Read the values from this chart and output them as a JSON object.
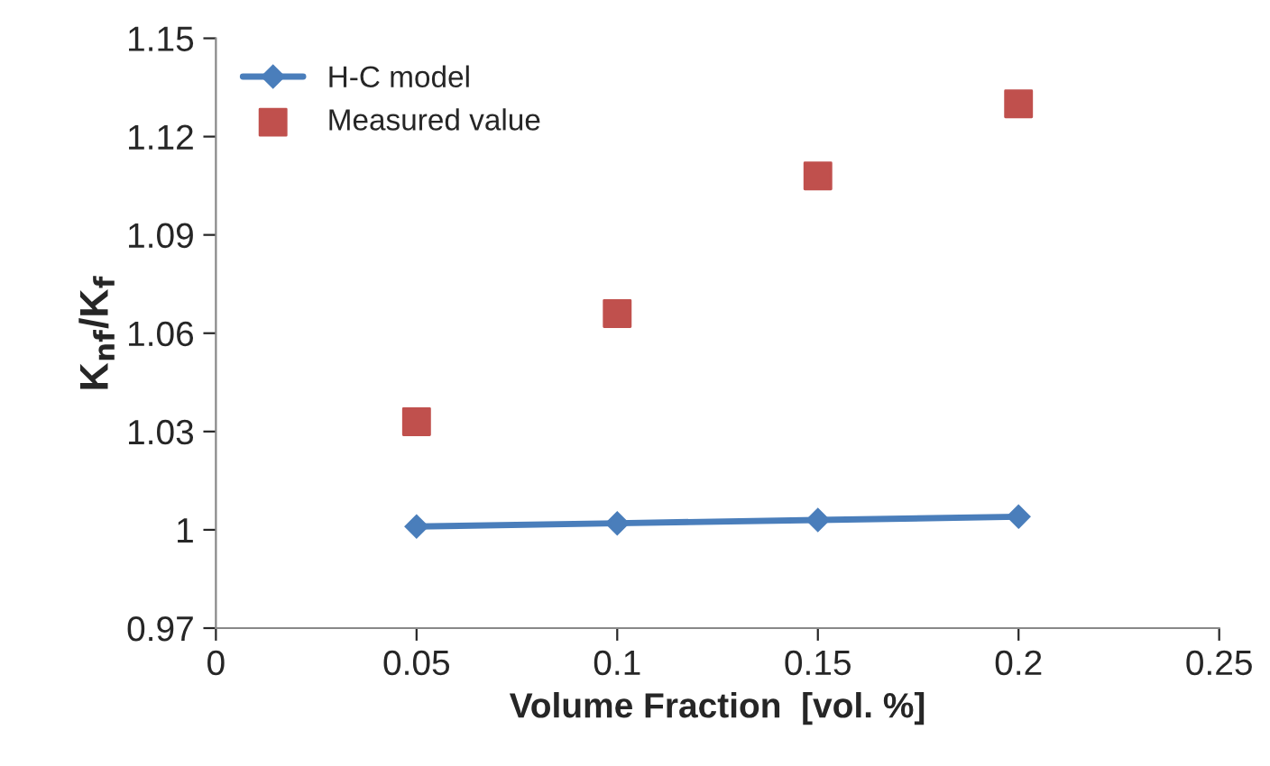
{
  "chart_data": {
    "type": "line",
    "xlabel": "Volume Fraction  [vol. %]",
    "ylabel": "K$_{nf}$/K$_{f}$",
    "x": [
      0.05,
      0.1,
      0.15,
      0.2
    ],
    "series": [
      {
        "name": "H-C model",
        "color": "#4a7ebb",
        "values": [
          1.001,
          1.002,
          1.003,
          1.004
        ],
        "marker": "diamond",
        "line_style": "solid"
      },
      {
        "name": "Measured value",
        "color": "#c0504d",
        "values": [
          1.033,
          1.066,
          1.108,
          1.13
        ],
        "type": "scatter",
        "marker": "square"
      }
    ],
    "xlim": [
      0,
      0.25
    ],
    "xticks": [
      0,
      0.05,
      0.1,
      0.15,
      0.2,
      0.25
    ],
    "ylim": [
      0.97,
      1.15
    ],
    "yticks": [
      0.97,
      1,
      1.03,
      1.06,
      1.09,
      1.12,
      1.15
    ],
    "grid": false,
    "legend": "top left"
  }
}
